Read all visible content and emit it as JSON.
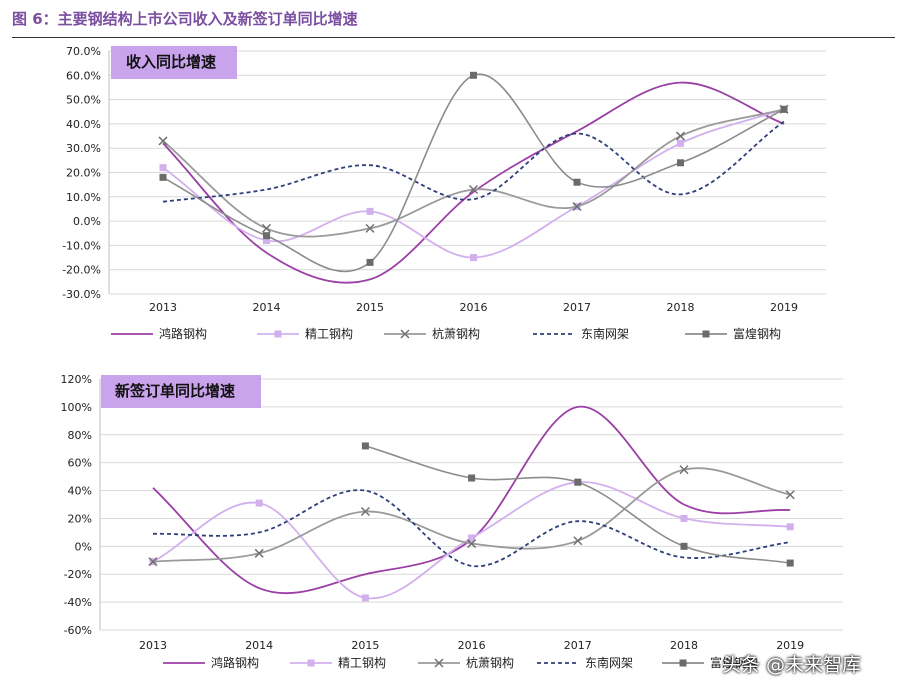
{
  "figure": {
    "title": "图 6：主要钢结构上市公司收入及新签订单同比增速",
    "watermark": "头条 @未来智库"
  },
  "chart_data": [
    {
      "type": "line",
      "title": "收入同比增速",
      "categories": [
        "2013",
        "2014",
        "2015",
        "2016",
        "2017",
        "2018",
        "2019"
      ],
      "y_ticks": [
        "70.0%",
        "60.0%",
        "50.0%",
        "40.0%",
        "30.0%",
        "20.0%",
        "10.0%",
        "0.0%",
        "-10.0%",
        "-20.0%",
        "-30.0%"
      ],
      "ylim": [
        -30,
        70
      ],
      "grid": true,
      "legend_position": "bottom",
      "series": [
        {
          "name": "鸿路钢构",
          "values": [
            32,
            -13,
            -24,
            12,
            37,
            57,
            40
          ],
          "color": "#9b3fa6",
          "style": "solid",
          "marker": "none"
        },
        {
          "name": "精工钢构",
          "values": [
            22,
            -8,
            4,
            -15,
            6,
            32,
            46
          ],
          "color": "#d2b0ee",
          "style": "solid",
          "marker": "square"
        },
        {
          "name": "杭萧钢构",
          "values": [
            33,
            -3,
            -3,
            13,
            6,
            35,
            46
          ],
          "color": "#9a9a9a",
          "style": "solid",
          "marker": "x"
        },
        {
          "name": "东南网架",
          "values": [
            8,
            13,
            23,
            9,
            36,
            11,
            41
          ],
          "color": "#2e3f7a",
          "style": "dash",
          "marker": "none"
        },
        {
          "name": "富煌钢构",
          "values": [
            18,
            -6,
            -17,
            60,
            16,
            24,
            46
          ],
          "color": "#8c8c8c",
          "style": "solid",
          "marker": "filled-square"
        }
      ]
    },
    {
      "type": "line",
      "title": "新签订单同比增速",
      "categories": [
        "2013",
        "2014",
        "2015",
        "2016",
        "2017",
        "2018",
        "2019"
      ],
      "y_ticks": [
        "120%",
        "100%",
        "80%",
        "60%",
        "40%",
        "20%",
        "0%",
        "-20%",
        "-40%",
        "-60%"
      ],
      "ylim": [
        -60,
        120
      ],
      "grid": true,
      "legend_position": "bottom",
      "series": [
        {
          "name": "鸿路钢构",
          "values": [
            42,
            -30,
            -20,
            5,
            100,
            30,
            26
          ],
          "color": "#9b3fa6",
          "style": "solid",
          "marker": "none"
        },
        {
          "name": "精工钢构",
          "values": [
            -11,
            31,
            -37,
            6,
            46,
            20,
            14
          ],
          "color": "#d2b0ee",
          "style": "solid",
          "marker": "square"
        },
        {
          "name": "杭萧钢构",
          "values": [
            -11,
            -5,
            25,
            2,
            4,
            55,
            37
          ],
          "color": "#9a9a9a",
          "style": "solid",
          "marker": "x"
        },
        {
          "name": "东南网架",
          "values": [
            9,
            10,
            40,
            -14,
            18,
            -8,
            3
          ],
          "color": "#2e3f7a",
          "style": "dash",
          "marker": "none"
        },
        {
          "name": "富煌钢构",
          "values": [
            null,
            null,
            72,
            49,
            46,
            0,
            -12
          ],
          "color": "#8c8c8c",
          "style": "solid",
          "marker": "filled-square"
        }
      ]
    }
  ]
}
